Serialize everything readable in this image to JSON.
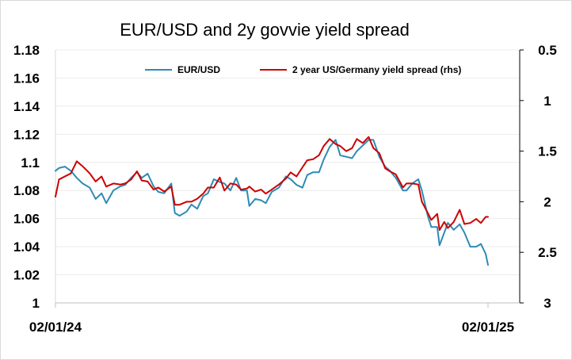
{
  "chart_data": {
    "type": "line",
    "title": "EUR/USD and 2y govvie yield spread",
    "x_tick_labels": [
      "02/01/24",
      "02/01/25"
    ],
    "x_range": [
      "2024-01-02",
      "2025-01-02"
    ],
    "left_axis": {
      "ylim": [
        1.0,
        1.18
      ],
      "ticks": [
        "1",
        "1.02",
        "1.04",
        "1.06",
        "1.08",
        "1.1",
        "1.12",
        "1.14",
        "1.16",
        "1.18"
      ]
    },
    "right_axis": {
      "ylim": [
        0.5,
        3.0
      ],
      "inverted": true,
      "ticks": [
        "0.5",
        "1",
        "1.5",
        "2",
        "2.5",
        "3"
      ]
    },
    "grid": "horizontal",
    "legend_placement": "top",
    "series": [
      {
        "name": "EUR/USD",
        "axis": "left",
        "color": "#2e8bb5",
        "points": [
          [
            "2024-01-02",
            1.094
          ],
          [
            "2024-01-05",
            1.096
          ],
          [
            "2024-01-10",
            1.097
          ],
          [
            "2024-01-15",
            1.094
          ],
          [
            "2024-01-20",
            1.089
          ],
          [
            "2024-01-25",
            1.085
          ],
          [
            "2024-01-31",
            1.082
          ],
          [
            "2024-02-05",
            1.074
          ],
          [
            "2024-02-10",
            1.078
          ],
          [
            "2024-02-14",
            1.071
          ],
          [
            "2024-02-20",
            1.08
          ],
          [
            "2024-02-26",
            1.083
          ],
          [
            "2024-03-01",
            1.084
          ],
          [
            "2024-03-06",
            1.089
          ],
          [
            "2024-03-11",
            1.093
          ],
          [
            "2024-03-15",
            1.089
          ],
          [
            "2024-03-20",
            1.092
          ],
          [
            "2024-03-25",
            1.083
          ],
          [
            "2024-03-29",
            1.079
          ],
          [
            "2024-04-03",
            1.078
          ],
          [
            "2024-04-09",
            1.085
          ],
          [
            "2024-04-12",
            1.064
          ],
          [
            "2024-04-16",
            1.062
          ],
          [
            "2024-04-22",
            1.065
          ],
          [
            "2024-04-26",
            1.07
          ],
          [
            "2024-05-01",
            1.067
          ],
          [
            "2024-05-06",
            1.076
          ],
          [
            "2024-05-10",
            1.078
          ],
          [
            "2024-05-15",
            1.088
          ],
          [
            "2024-05-20",
            1.086
          ],
          [
            "2024-05-24",
            1.085
          ],
          [
            "2024-05-29",
            1.08
          ],
          [
            "2024-06-03",
            1.089
          ],
          [
            "2024-06-07",
            1.08
          ],
          [
            "2024-06-12",
            1.08
          ],
          [
            "2024-06-14",
            1.069
          ],
          [
            "2024-06-19",
            1.074
          ],
          [
            "2024-06-24",
            1.073
          ],
          [
            "2024-06-28",
            1.071
          ],
          [
            "2024-07-03",
            1.079
          ],
          [
            "2024-07-09",
            1.082
          ],
          [
            "2024-07-15",
            1.09
          ],
          [
            "2024-07-19",
            1.088
          ],
          [
            "2024-07-24",
            1.084
          ],
          [
            "2024-07-29",
            1.082
          ],
          [
            "2024-08-02",
            1.091
          ],
          [
            "2024-08-07",
            1.093
          ],
          [
            "2024-08-12",
            1.093
          ],
          [
            "2024-08-16",
            1.102
          ],
          [
            "2024-08-21",
            1.111
          ],
          [
            "2024-08-26",
            1.116
          ],
          [
            "2024-08-30",
            1.105
          ],
          [
            "2024-09-04",
            1.104
          ],
          [
            "2024-09-09",
            1.103
          ],
          [
            "2024-09-13",
            1.108
          ],
          [
            "2024-09-18",
            1.112
          ],
          [
            "2024-09-23",
            1.116
          ],
          [
            "2024-09-27",
            1.116
          ],
          [
            "2024-10-02",
            1.104
          ],
          [
            "2024-10-07",
            1.097
          ],
          [
            "2024-10-11",
            1.094
          ],
          [
            "2024-10-16",
            1.089
          ],
          [
            "2024-10-22",
            1.08
          ],
          [
            "2024-10-25",
            1.08
          ],
          [
            "2024-10-30",
            1.085
          ],
          [
            "2024-11-04",
            1.088
          ],
          [
            "2024-11-07",
            1.08
          ],
          [
            "2024-11-12",
            1.062
          ],
          [
            "2024-11-15",
            1.054
          ],
          [
            "2024-11-20",
            1.054
          ],
          [
            "2024-11-22",
            1.041
          ],
          [
            "2024-11-26",
            1.05
          ],
          [
            "2024-11-29",
            1.057
          ],
          [
            "2024-12-04",
            1.052
          ],
          [
            "2024-12-09",
            1.056
          ],
          [
            "2024-12-13",
            1.05
          ],
          [
            "2024-12-18",
            1.04
          ],
          [
            "2024-12-23",
            1.04
          ],
          [
            "2024-12-27",
            1.042
          ],
          [
            "2024-12-31",
            1.035
          ],
          [
            "2025-01-02",
            1.027
          ]
        ]
      },
      {
        "name": "2 year US/Germany yield spread (rhs)",
        "axis": "right",
        "color": "#cc0000",
        "points": [
          [
            "2024-01-02",
            1.95
          ],
          [
            "2024-01-05",
            1.78
          ],
          [
            "2024-01-10",
            1.75
          ],
          [
            "2024-01-15",
            1.72
          ],
          [
            "2024-01-20",
            1.6
          ],
          [
            "2024-01-25",
            1.65
          ],
          [
            "2024-01-31",
            1.72
          ],
          [
            "2024-02-05",
            1.8
          ],
          [
            "2024-02-10",
            1.75
          ],
          [
            "2024-02-14",
            1.85
          ],
          [
            "2024-02-20",
            1.82
          ],
          [
            "2024-02-26",
            1.83
          ],
          [
            "2024-03-01",
            1.82
          ],
          [
            "2024-03-06",
            1.78
          ],
          [
            "2024-03-11",
            1.7
          ],
          [
            "2024-03-15",
            1.79
          ],
          [
            "2024-03-20",
            1.8
          ],
          [
            "2024-03-25",
            1.88
          ],
          [
            "2024-03-29",
            1.86
          ],
          [
            "2024-04-03",
            1.9
          ],
          [
            "2024-04-09",
            1.85
          ],
          [
            "2024-04-12",
            2.03
          ],
          [
            "2024-04-16",
            2.03
          ],
          [
            "2024-04-22",
            2.0
          ],
          [
            "2024-04-26",
            2.0
          ],
          [
            "2024-05-01",
            1.97
          ],
          [
            "2024-05-06",
            1.92
          ],
          [
            "2024-05-10",
            1.86
          ],
          [
            "2024-05-15",
            1.86
          ],
          [
            "2024-05-20",
            1.76
          ],
          [
            "2024-05-24",
            1.89
          ],
          [
            "2024-05-29",
            1.82
          ],
          [
            "2024-06-03",
            1.83
          ],
          [
            "2024-06-07",
            1.88
          ],
          [
            "2024-06-12",
            1.87
          ],
          [
            "2024-06-14",
            1.85
          ],
          [
            "2024-06-19",
            1.9
          ],
          [
            "2024-06-24",
            1.88
          ],
          [
            "2024-06-28",
            1.92
          ],
          [
            "2024-07-03",
            1.88
          ],
          [
            "2024-07-09",
            1.83
          ],
          [
            "2024-07-15",
            1.77
          ],
          [
            "2024-07-19",
            1.71
          ],
          [
            "2024-07-24",
            1.75
          ],
          [
            "2024-07-29",
            1.66
          ],
          [
            "2024-08-02",
            1.59
          ],
          [
            "2024-08-07",
            1.58
          ],
          [
            "2024-08-12",
            1.54
          ],
          [
            "2024-08-16",
            1.45
          ],
          [
            "2024-08-21",
            1.38
          ],
          [
            "2024-08-26",
            1.43
          ],
          [
            "2024-08-30",
            1.45
          ],
          [
            "2024-09-04",
            1.5
          ],
          [
            "2024-09-09",
            1.47
          ],
          [
            "2024-09-13",
            1.38
          ],
          [
            "2024-09-18",
            1.42
          ],
          [
            "2024-09-23",
            1.36
          ],
          [
            "2024-09-27",
            1.47
          ],
          [
            "2024-10-02",
            1.52
          ],
          [
            "2024-10-07",
            1.67
          ],
          [
            "2024-10-11",
            1.7
          ],
          [
            "2024-10-16",
            1.73
          ],
          [
            "2024-10-22",
            1.86
          ],
          [
            "2024-10-25",
            1.82
          ],
          [
            "2024-10-30",
            1.82
          ],
          [
            "2024-11-04",
            1.83
          ],
          [
            "2024-11-07",
            2.0
          ],
          [
            "2024-11-12",
            2.11
          ],
          [
            "2024-11-15",
            2.18
          ],
          [
            "2024-11-20",
            2.12
          ],
          [
            "2024-11-22",
            2.28
          ],
          [
            "2024-11-26",
            2.2
          ],
          [
            "2024-11-29",
            2.26
          ],
          [
            "2024-12-04",
            2.2
          ],
          [
            "2024-12-09",
            2.08
          ],
          [
            "2024-12-13",
            2.22
          ],
          [
            "2024-12-18",
            2.21
          ],
          [
            "2024-12-23",
            2.17
          ],
          [
            "2024-12-27",
            2.21
          ],
          [
            "2024-12-31",
            2.15
          ],
          [
            "2025-01-02",
            2.15
          ]
        ]
      }
    ]
  }
}
